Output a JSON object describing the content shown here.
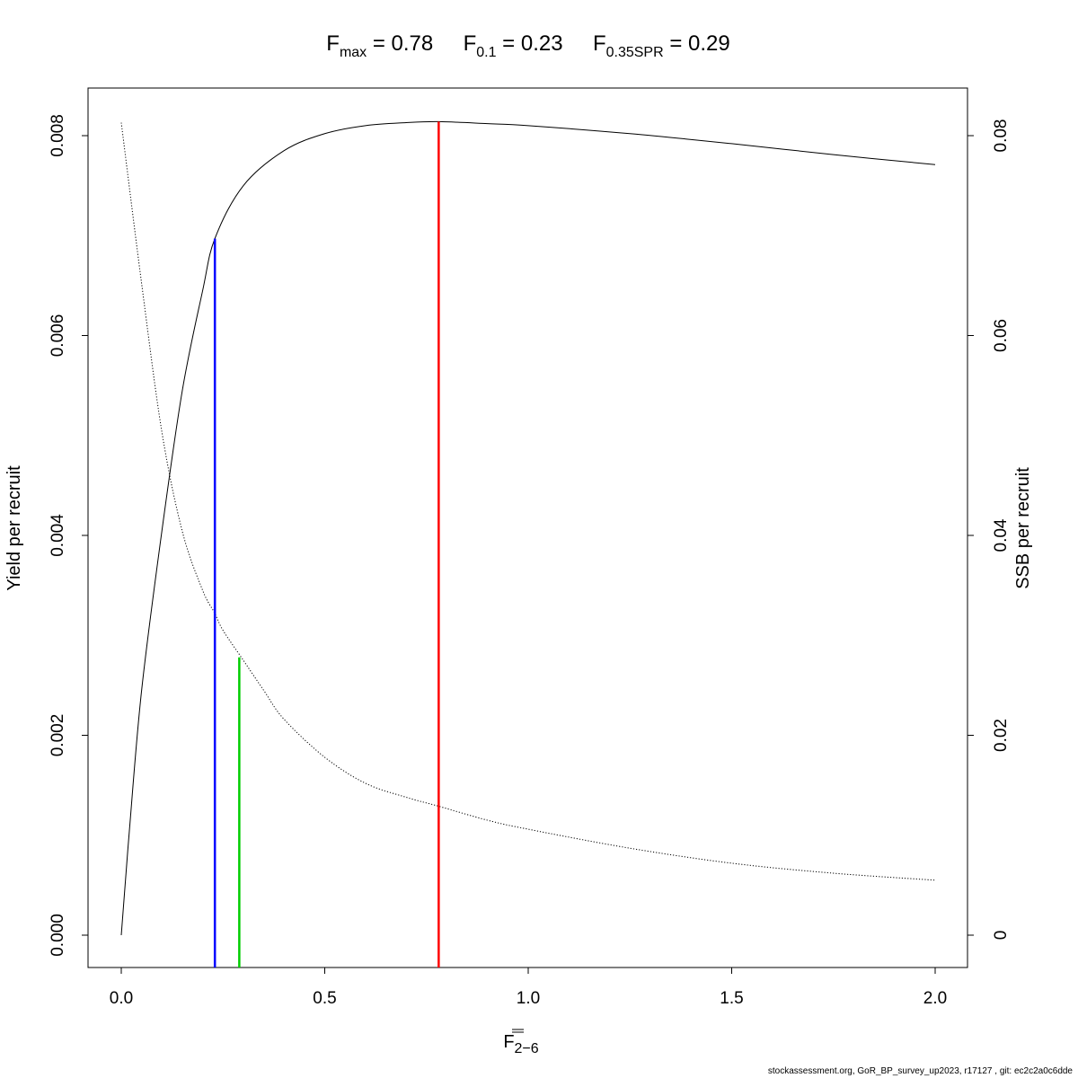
{
  "chart_data": {
    "type": "line",
    "title": {
      "fmax": {
        "label": "F",
        "sub": "max",
        "value": "0.78"
      },
      "f01": {
        "label": "F",
        "sub": "0.1",
        "value": "0.23"
      },
      "fspr": {
        "label": "F",
        "sub": "0.35SPR",
        "value": "0.29"
      }
    },
    "xlabel": {
      "main": "F",
      "sub": "2−6"
    },
    "ylabel_left": "Yield per recruit",
    "ylabel_right": "SSB per recruit",
    "xlim": [
      0,
      2
    ],
    "ylim_left": [
      0,
      0.008
    ],
    "ylim_right": [
      0,
      0.08
    ],
    "x_ticks": [
      "0.0",
      "0.5",
      "1.0",
      "1.5",
      "2.0"
    ],
    "y_left_ticks": [
      "0.000",
      "0.002",
      "0.004",
      "0.006",
      "0.008"
    ],
    "y_right_ticks": [
      "0",
      "0.02",
      "0.04",
      "0.06",
      "0.08"
    ],
    "series": [
      {
        "axis": "left",
        "style": "solid",
        "color": "#000000",
        "x": [
          0,
          0.02,
          0.05,
          0.1,
          0.15,
          0.2,
          0.23,
          0.3,
          0.4,
          0.5,
          0.6,
          0.7,
          0.78,
          0.9,
          1.0,
          1.25,
          1.5,
          1.75,
          2.0
        ],
        "y": [
          0,
          0.00105,
          0.00245,
          0.00405,
          0.00545,
          0.00645,
          0.00697,
          0.0075,
          0.00785,
          0.00802,
          0.0081,
          0.00813,
          0.00814,
          0.00812,
          0.0081,
          0.00802,
          0.00792,
          0.00781,
          0.00771
        ]
      },
      {
        "axis": "right",
        "style": "dotted",
        "color": "#000000",
        "x": [
          0,
          0.05,
          0.1,
          0.15,
          0.2,
          0.23,
          0.25,
          0.3,
          0.35,
          0.4,
          0.5,
          0.6,
          0.7,
          0.78,
          0.9,
          1.0,
          1.25,
          1.5,
          1.75,
          2.0
        ],
        "y": [
          0.0813,
          0.0652,
          0.0503,
          0.0404,
          0.0345,
          0.0322,
          0.0305,
          0.0275,
          0.0245,
          0.0216,
          0.0178,
          0.0152,
          0.0138,
          0.0129,
          0.0115,
          0.0106,
          0.0087,
          0.0072,
          0.0062,
          0.0055
        ]
      }
    ],
    "reference_lines": [
      {
        "name": "Fmax",
        "x": 0.78,
        "y_left": 0.00814,
        "color": "#ff0000"
      },
      {
        "name": "F0.1",
        "x": 0.23,
        "y_left": 0.00697,
        "color": "#0000ff"
      },
      {
        "name": "F0.35SPR",
        "x": 0.29,
        "y_left": 0.00278,
        "color": "#00cd00"
      }
    ]
  },
  "footer": "stockassessment.org, GoR_BP_survey_up2023, r17127 , git: ec2c2a0c6dde"
}
